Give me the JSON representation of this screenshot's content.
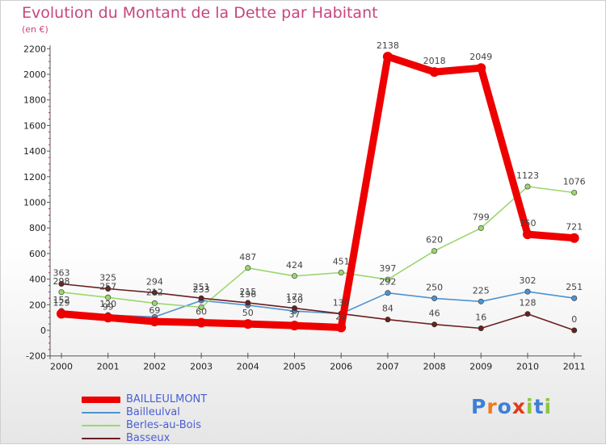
{
  "title": "Evolution du Montant de la Dette par Habitant",
  "unit": "(en €)",
  "brand": {
    "name": "Proxiti",
    "letters": [
      "P",
      "r",
      "o",
      "x",
      "i",
      "t",
      "i"
    ],
    "letter_colors": [
      "#3d7fd6",
      "#f07b1c",
      "#3d7fd6",
      "#e23b1a",
      "#8cc63f",
      "#3d7fd6",
      "#8cc63f"
    ]
  },
  "chart_data": {
    "type": "line",
    "x": [
      "2000",
      "2001",
      "2002",
      "2003",
      "2004",
      "2005",
      "2006",
      "2007",
      "2008",
      "2009",
      "2010",
      "2011"
    ],
    "ylim": [
      -200,
      2200
    ],
    "yticks": [
      "-200",
      "0",
      "200",
      "400",
      "600",
      "800",
      "1000",
      "1200",
      "1400",
      "1600",
      "1800",
      "2000",
      "2200"
    ],
    "grid": false,
    "legend_position": "bottom-left",
    "series": [
      {
        "name": "BAILLEULMONT",
        "color": "#ee0000",
        "values": [
          129,
          99,
          69,
          60,
          50,
          37,
          22,
          2138,
          2018,
          2049,
          750,
          721
        ],
        "labels": [
          "129",
          "99",
          "69",
          "60",
          "50",
          "37",
          "22",
          "2138",
          "2018",
          "2049",
          "750",
          "721"
        ]
      },
      {
        "name": "Bailleulval",
        "color": "#4e93d1",
        "values": [
          152,
          120,
          105,
          233,
          196,
          150,
          130,
          292,
          250,
          225,
          302,
          251
        ],
        "labels": [
          "152",
          "120",
          "",
          "233",
          "196",
          "150",
          "130",
          "292",
          "250",
          "225",
          "302",
          "251"
        ]
      },
      {
        "name": "Berles-au-Bois",
        "color": "#9bd76c",
        "values": [
          298,
          257,
          212,
          180,
          487,
          424,
          451,
          397,
          620,
          799,
          1123,
          1076
        ],
        "labels": [
          "298",
          "257",
          "212",
          "",
          "487",
          "424",
          "451",
          "397",
          "620",
          "799",
          "1123",
          "1076"
        ]
      },
      {
        "name": "Basseux",
        "color": "#6b1f1f",
        "values": [
          363,
          325,
          294,
          251,
          215,
          173,
          130,
          84,
          46,
          16,
          128,
          0
        ],
        "labels": [
          "363",
          "325",
          "294",
          "251",
          "215",
          "173",
          "",
          "84",
          "46",
          "16",
          "128",
          "0"
        ]
      }
    ]
  }
}
